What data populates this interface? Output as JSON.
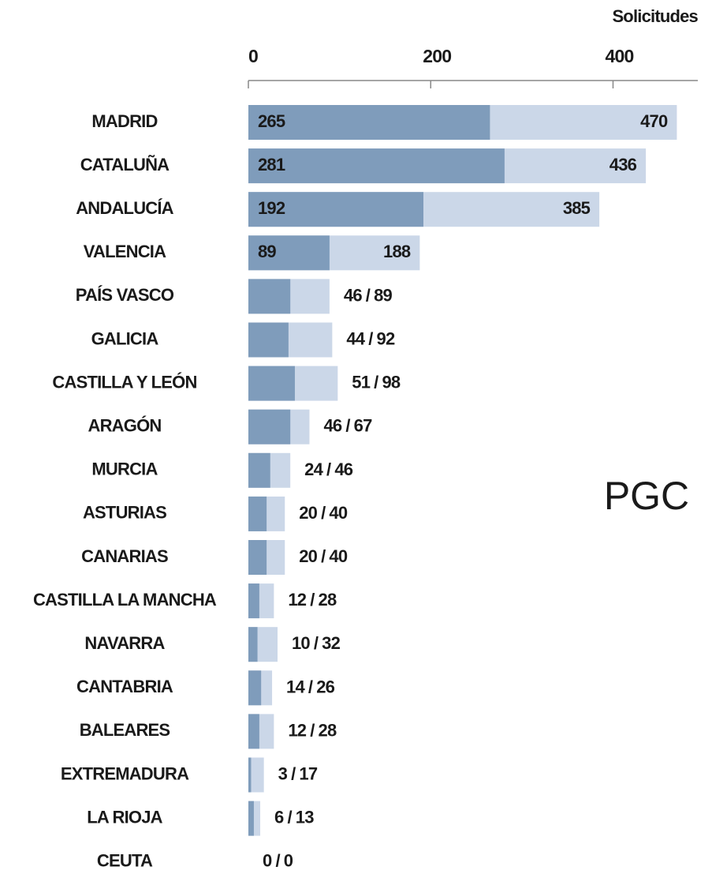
{
  "chart_data": {
    "type": "bar",
    "orientation": "horizontal",
    "overlap": true,
    "axis_label": "Solicitudes",
    "annotation": "PGC",
    "label_separator": "/",
    "categories": [
      "MADRID",
      "CATALUÑA",
      "ANDALUCÍA",
      "VALENCIA",
      "PAÍS VASCO",
      "GALICIA",
      "CASTILLA Y LEÓN",
      "ARAGÓN",
      "MURCIA",
      "ASTURIAS",
      "CANARIAS",
      "CASTILLA LA MANCHA",
      "NAVARRA",
      "CANTABRIA",
      "BALEARES",
      "EXTREMADURA",
      "LA RIOJA",
      "CEUTA"
    ],
    "series": [
      {
        "name": "",
        "color": "#7f9cbb",
        "values": [
          265,
          281,
          192,
          89,
          46,
          44,
          51,
          46,
          24,
          20,
          20,
          12,
          10,
          14,
          12,
          3,
          6,
          0
        ]
      },
      {
        "name": "",
        "color": "#cbd7e8",
        "values": [
          470,
          436,
          385,
          188,
          89,
          92,
          98,
          67,
          46,
          40,
          40,
          28,
          32,
          26,
          28,
          17,
          13,
          0
        ]
      }
    ],
    "xlim": [
      0,
      493
    ],
    "xticks": [
      0,
      200,
      400
    ],
    "legend": false,
    "grid": false
  }
}
